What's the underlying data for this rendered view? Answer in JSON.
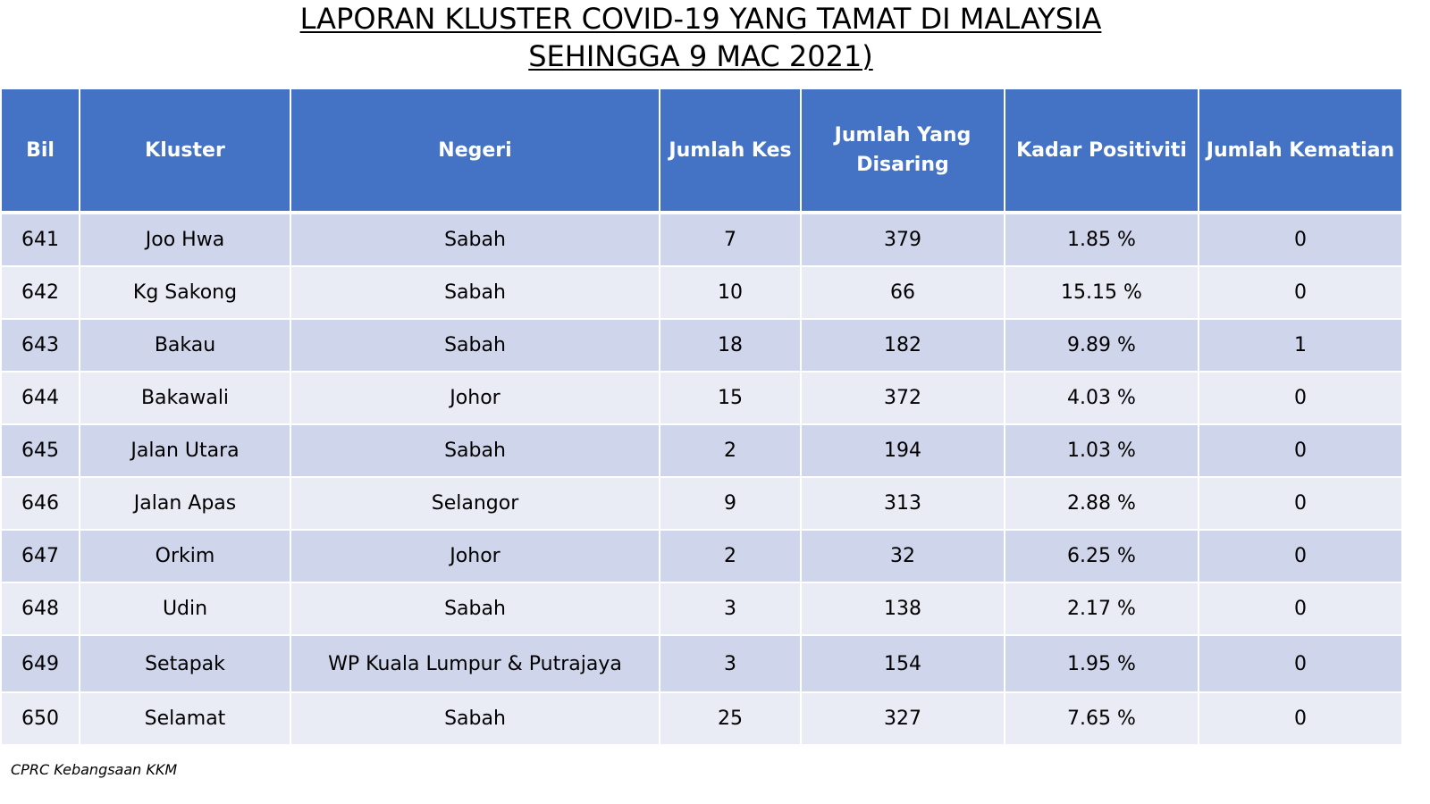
{
  "title": {
    "line1": "LAPORAN KLUSTER COVID-19 YANG TAMAT DI MALAYSIA",
    "line2": "SEHINGGA 9 MAC 2021)"
  },
  "table": {
    "headers": {
      "bil": "Bil",
      "kluster": "Kluster",
      "negeri": "Negeri",
      "jumlah_kes": "Jumlah Kes",
      "jumlah_disaring_1": "Jumlah Yang",
      "jumlah_disaring_2": "Disaring",
      "kadar": "Kadar Positiviti",
      "kematian": "Jumlah Kematian"
    },
    "rows": [
      {
        "bil": "641",
        "kluster": "Joo Hwa",
        "negeri": "Sabah",
        "kes": "7",
        "disaring": "379",
        "kadar": "1.85 %",
        "kematian": "0"
      },
      {
        "bil": "642",
        "kluster": "Kg Sakong",
        "negeri": "Sabah",
        "kes": "10",
        "disaring": "66",
        "kadar": "15.15 %",
        "kematian": "0"
      },
      {
        "bil": "643",
        "kluster": "Bakau",
        "negeri": "Sabah",
        "kes": "18",
        "disaring": "182",
        "kadar": "9.89 %",
        "kematian": "1"
      },
      {
        "bil": "644",
        "kluster": "Bakawali",
        "negeri": "Johor",
        "kes": "15",
        "disaring": "372",
        "kadar": "4.03 %",
        "kematian": "0"
      },
      {
        "bil": "645",
        "kluster": "Jalan Utara",
        "negeri": "Sabah",
        "kes": "2",
        "disaring": "194",
        "kadar": "1.03 %",
        "kematian": "0"
      },
      {
        "bil": "646",
        "kluster": "Jalan Apas",
        "negeri": "Selangor",
        "kes": "9",
        "disaring": "313",
        "kadar": "2.88 %",
        "kematian": "0"
      },
      {
        "bil": "647",
        "kluster": "Orkim",
        "negeri": "Johor",
        "kes": "2",
        "disaring": "32",
        "kadar": "6.25 %",
        "kematian": "0"
      },
      {
        "bil": "648",
        "kluster": "Udin",
        "negeri": "Sabah",
        "kes": "3",
        "disaring": "138",
        "kadar": "2.17 %",
        "kematian": "0"
      },
      {
        "bil": "649",
        "kluster": "Setapak",
        "negeri": "WP Kuala Lumpur & Putrajaya",
        "kes": "3",
        "disaring": "154",
        "kadar": "1.95 %",
        "kematian": "0"
      },
      {
        "bil": "650",
        "kluster": "Selamat",
        "negeri": "Sabah",
        "kes": "25",
        "disaring": "327",
        "kadar": "7.65 %",
        "kematian": "0"
      }
    ]
  },
  "footer": {
    "source": "CPRC Kebangsaan KKM"
  },
  "colors": {
    "header_bg": "#4472c4",
    "row_odd": "#cfd5ea",
    "row_even": "#e9ebf5"
  }
}
